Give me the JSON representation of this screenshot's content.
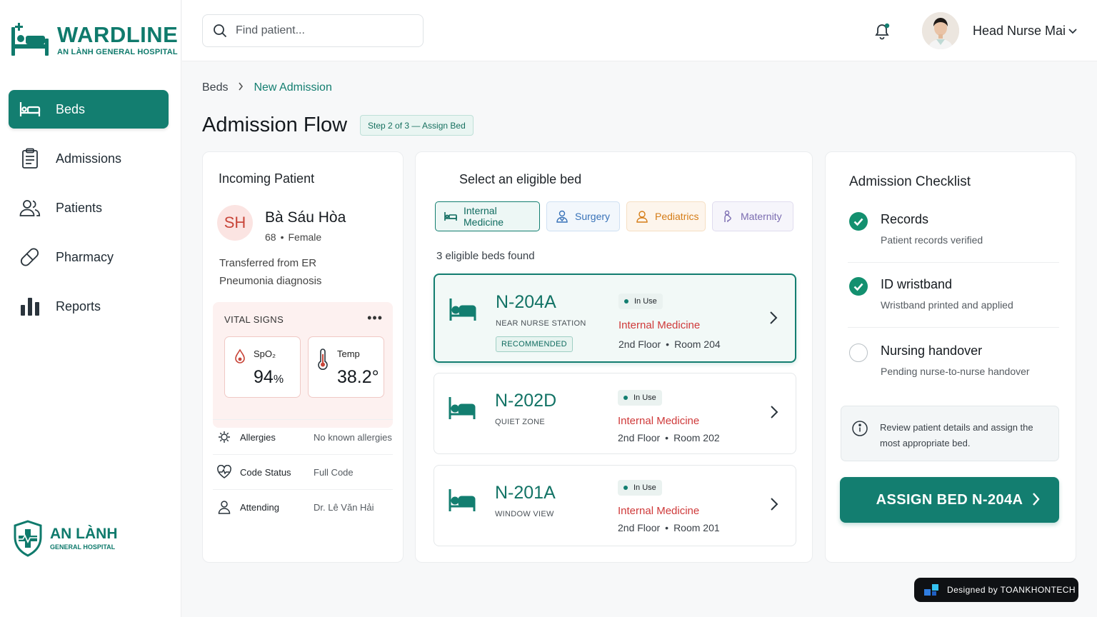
{
  "app": {
    "name": "WARDLINE",
    "hospital": "AN LÀNH GENERAL HOSPITAL"
  },
  "sidebar": {
    "items": [
      {
        "label": "Beds",
        "icon": "bed-icon",
        "active": true
      },
      {
        "label": "Admissions",
        "icon": "clipboard-icon"
      },
      {
        "label": "Patients",
        "icon": "users-icon"
      },
      {
        "label": "Pharmacy",
        "icon": "pill-icon"
      },
      {
        "label": "Reports",
        "icon": "bar-chart-icon"
      }
    ],
    "brand": {
      "title": "AN LÀNH",
      "subtitle": "GENERAL HOSPITAL"
    }
  },
  "header": {
    "search_placeholder": "Find patient...",
    "user_name": "Head Nurse Mai"
  },
  "breadcrumb": {
    "root": "Beds",
    "current": "New Admission"
  },
  "page": {
    "title": "Admission Flow",
    "step": "Step 2 of 3 — Assign Bed"
  },
  "patient": {
    "section_title": "Incoming Patient",
    "initials": "SH",
    "name": "Bà Sáu Hòa",
    "age": "68",
    "sex": "Female",
    "transfer": "Transferred from ER",
    "diagnosis": "Pneumonia diagnosis",
    "vitals": {
      "title": "VITAL SIGNS",
      "spo2": {
        "label": "SpO₂",
        "value": "94",
        "unit": "%"
      },
      "temp": {
        "label": "Temp",
        "value": "38.2°"
      }
    },
    "info": [
      {
        "label": "Allergies",
        "value": "No known allergies",
        "icon": "allergy-icon"
      },
      {
        "label": "Code Status",
        "value": "Full Code",
        "icon": "heart-pulse-icon"
      },
      {
        "label": "Attending",
        "value": "Dr. Lê Văn Hải",
        "icon": "person-icon"
      }
    ]
  },
  "beds": {
    "title": "Select an eligible bed",
    "filters": [
      "Internal Medicine",
      "Surgery",
      "Pediatrics",
      "Maternity"
    ],
    "found": "3 eligible beds found",
    "list": [
      {
        "code": "N-204A",
        "note": "NEAR NURSE STATION",
        "badge": "RECOMMENDED",
        "status": "In Use",
        "dept": "Internal Medicine",
        "floor": "2nd Floor",
        "room": "Room 204"
      },
      {
        "code": "N-202D",
        "note": "QUIET ZONE",
        "status": "In Use",
        "dept": "Internal Medicine",
        "floor": "2nd Floor",
        "room": "Room 202"
      },
      {
        "code": "N-201A",
        "note": "WINDOW VIEW",
        "status": "In Use",
        "dept": "Internal Medicine",
        "floor": "2nd Floor",
        "room": "Room 201"
      }
    ]
  },
  "checklist": {
    "title": "Admission Checklist",
    "items": [
      {
        "title": "Records",
        "sub": "Patient records verified",
        "done": true
      },
      {
        "title": "ID wristband",
        "sub": "Wristband printed and applied",
        "done": true
      },
      {
        "title": "Nursing handover",
        "sub": "Pending nurse-to-nurse handover",
        "done": false
      }
    ],
    "hint": "Review patient details and assign the most appropriate bed.",
    "button": "ASSIGN BED N-204A"
  },
  "footer": {
    "credit": "Designed by TOANKHONTECH"
  },
  "colors": {
    "primary": "#137e70",
    "alert": "#cf3a3a",
    "vitals_bg": "#fdf1f0"
  }
}
